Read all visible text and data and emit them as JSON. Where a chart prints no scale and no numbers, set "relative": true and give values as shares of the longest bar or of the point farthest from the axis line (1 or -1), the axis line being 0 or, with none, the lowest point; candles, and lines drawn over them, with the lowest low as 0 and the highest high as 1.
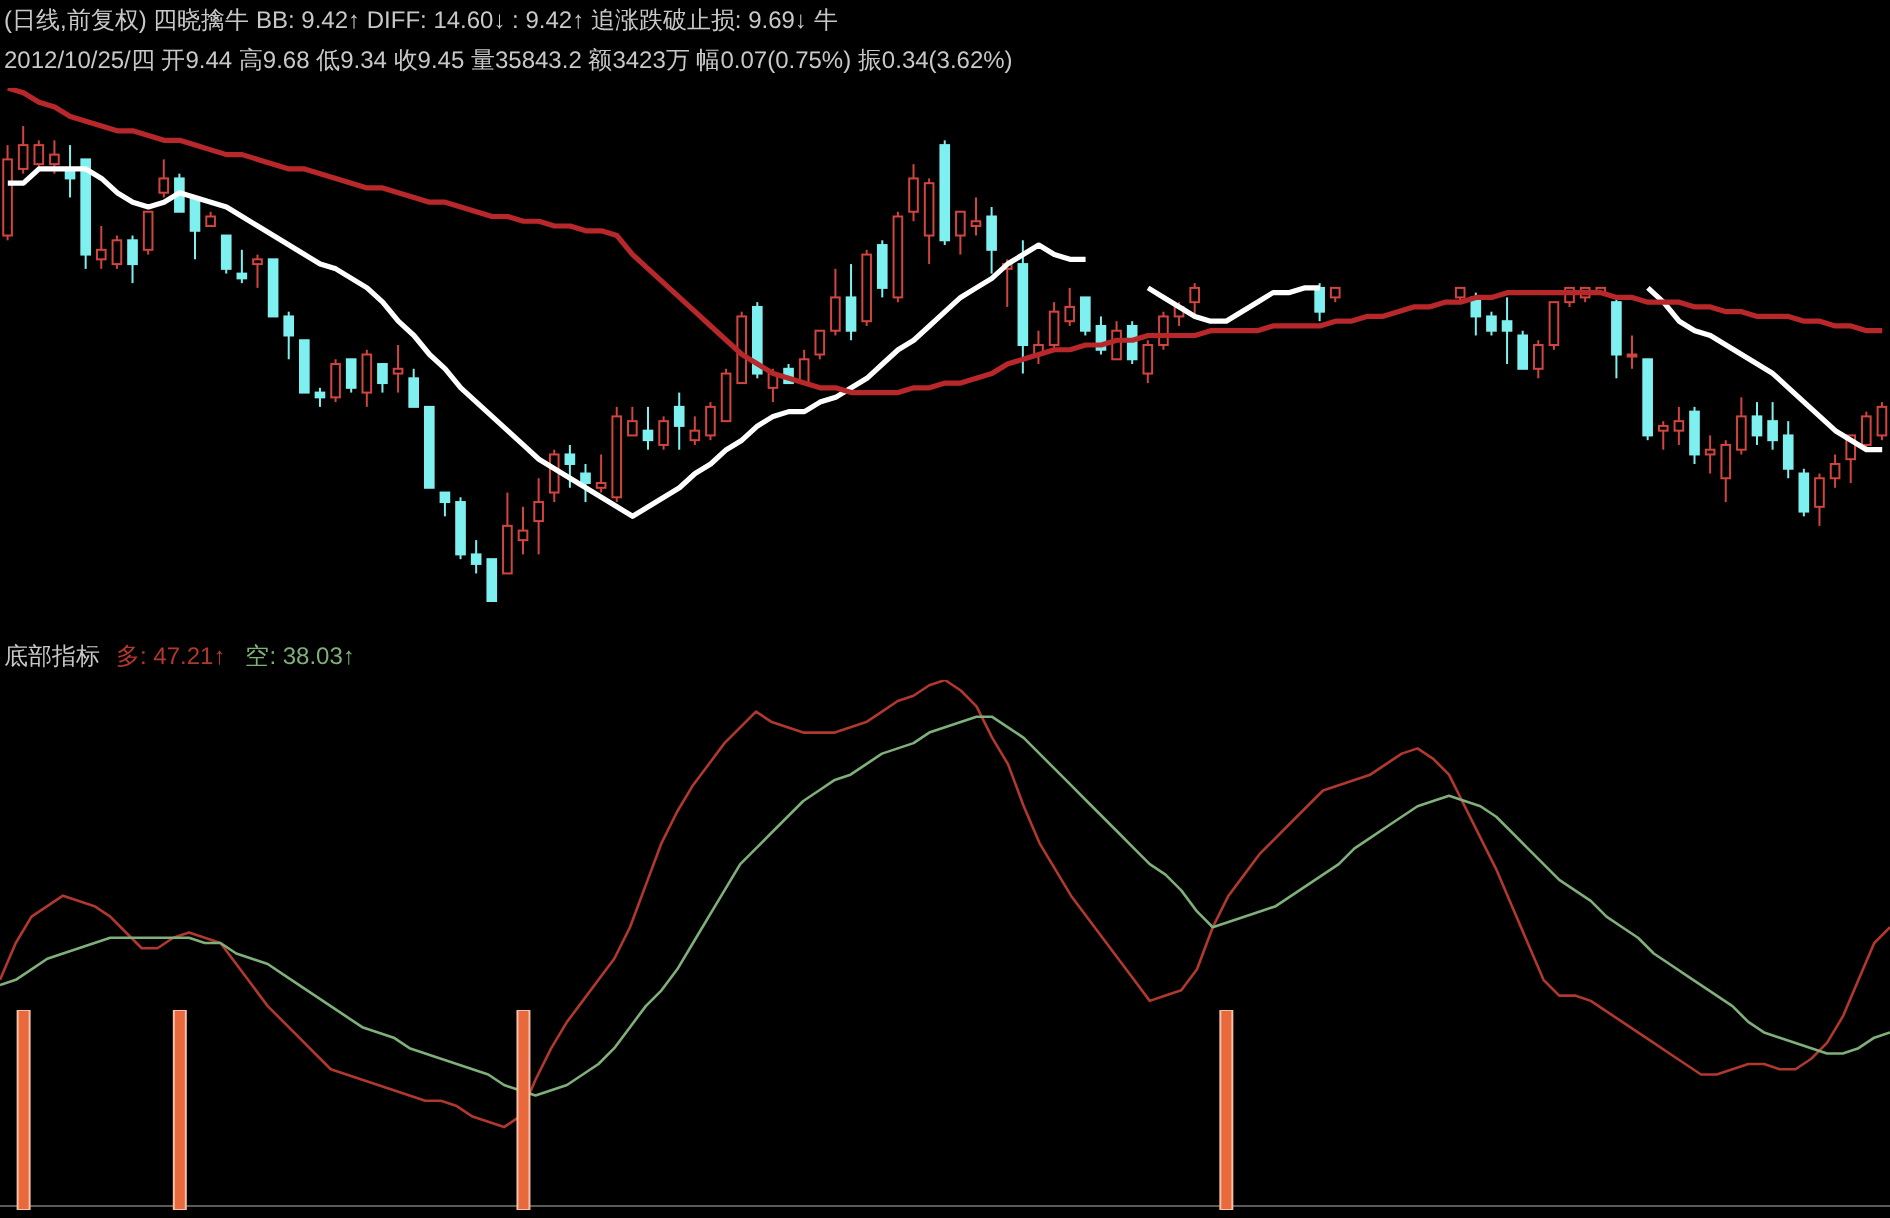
{
  "chart_data": [
    {
      "type": "candlestick",
      "title": "(日线,前复权) 四晓擒牛 BB: 9.42↑ DIFF: 14.60↓ : 9.42↑ 追涨跌破止损: 9.69↓ 牛",
      "subtitle": "2012/10/25/四 开9.44 高9.68 低9.34 收9.45 量35843.2 额3423万 幅0.07(0.75%) 振0.34(3.62%)",
      "relative": true,
      "categories": [
        null,
        null,
        null,
        null,
        null,
        null,
        null,
        null,
        null,
        null,
        null,
        null,
        null,
        null,
        null,
        null,
        null,
        null,
        null,
        null,
        null,
        null,
        null,
        null,
        null,
        null,
        null,
        null,
        null,
        null,
        null,
        null,
        null,
        null,
        null,
        null,
        null,
        null,
        null,
        null,
        null,
        null,
        null,
        null,
        null,
        null,
        null,
        null,
        null,
        null,
        null,
        null,
        null,
        null,
        null,
        null,
        null,
        null,
        null,
        null,
        null,
        null,
        null,
        null,
        null,
        null,
        null,
        null,
        null,
        null,
        null,
        null,
        null,
        null,
        null,
        null,
        null,
        null,
        null,
        null,
        null,
        null,
        null,
        null,
        null,
        null,
        null,
        null,
        null,
        null,
        null,
        null,
        null,
        null,
        null,
        null,
        null,
        null,
        null,
        null,
        null,
        null,
        null,
        null,
        null,
        null,
        null,
        null,
        null,
        null,
        null,
        null,
        null,
        null,
        null,
        null,
        null,
        null,
        null,
        null,
        null
      ],
      "ohlc": [
        [
          0.77,
          0.96,
          0.76,
          0.93
        ],
        [
          0.91,
          1.0,
          0.9,
          0.96
        ],
        [
          0.92,
          0.97,
          0.91,
          0.96
        ],
        [
          0.92,
          0.97,
          0.9,
          0.94
        ],
        [
          0.91,
          0.96,
          0.85,
          0.89
        ],
        [
          0.93,
          0.93,
          0.7,
          0.73
        ],
        [
          0.72,
          0.79,
          0.7,
          0.74
        ],
        [
          0.71,
          0.77,
          0.7,
          0.76
        ],
        [
          0.76,
          0.77,
          0.67,
          0.71
        ],
        [
          0.74,
          0.82,
          0.73,
          0.82
        ],
        [
          0.86,
          0.93,
          0.85,
          0.89
        ],
        [
          0.89,
          0.9,
          0.82,
          0.82
        ],
        [
          0.85,
          0.85,
          0.72,
          0.78
        ],
        [
          0.79,
          0.82,
          0.79,
          0.81
        ],
        [
          0.77,
          0.77,
          0.69,
          0.7
        ],
        [
          0.69,
          0.74,
          0.67,
          0.68
        ],
        [
          0.71,
          0.73,
          0.66,
          0.72
        ],
        [
          0.72,
          0.72,
          0.6,
          0.6
        ],
        [
          0.6,
          0.61,
          0.51,
          0.56
        ],
        [
          0.55,
          0.55,
          0.44,
          0.44
        ],
        [
          0.44,
          0.45,
          0.41,
          0.43
        ],
        [
          0.43,
          0.51,
          0.42,
          0.5
        ],
        [
          0.51,
          0.51,
          0.44,
          0.45
        ],
        [
          0.44,
          0.53,
          0.41,
          0.52
        ],
        [
          0.5,
          0.5,
          0.44,
          0.46
        ],
        [
          0.48,
          0.54,
          0.44,
          0.49
        ],
        [
          0.47,
          0.49,
          0.41,
          0.41
        ],
        [
          0.41,
          0.41,
          0.24,
          0.24
        ],
        [
          0.23,
          0.23,
          0.18,
          0.21
        ],
        [
          0.21,
          0.22,
          0.09,
          0.1
        ],
        [
          0.1,
          0.13,
          0.06,
          0.08
        ],
        [
          0.09,
          0.09,
          0,
          0
        ],
        [
          0.06,
          0.23,
          0.06,
          0.16
        ],
        [
          0.13,
          0.2,
          0.1,
          0.15
        ],
        [
          0.17,
          0.26,
          0.1,
          0.21
        ],
        [
          0.23,
          0.32,
          0.21,
          0.31
        ],
        [
          0.31,
          0.33,
          0.24,
          0.29
        ],
        [
          0.27,
          0.29,
          0.21,
          0.25
        ],
        [
          0.24,
          0.31,
          0.23,
          0.25
        ],
        [
          0.22,
          0.41,
          0.21,
          0.39
        ],
        [
          0.35,
          0.41,
          0.35,
          0.38
        ],
        [
          0.36,
          0.41,
          0.32,
          0.34
        ],
        [
          0.33,
          0.39,
          0.32,
          0.38
        ],
        [
          0.41,
          0.44,
          0.32,
          0.37
        ],
        [
          0.34,
          0.39,
          0.33,
          0.36
        ],
        [
          0.35,
          0.42,
          0.34,
          0.41
        ],
        [
          0.38,
          0.49,
          0.38,
          0.48
        ],
        [
          0.46,
          0.61,
          0.46,
          0.6
        ],
        [
          0.62,
          0.63,
          0.47,
          0.48
        ],
        [
          0.45,
          0.49,
          0.42,
          0.48
        ],
        [
          0.49,
          0.5,
          0.46,
          0.46
        ],
        [
          0.46,
          0.53,
          0.46,
          0.51
        ],
        [
          0.52,
          0.57,
          0.51,
          0.57
        ],
        [
          0.57,
          0.7,
          0.56,
          0.64
        ],
        [
          0.64,
          0.71,
          0.55,
          0.57
        ],
        [
          0.59,
          0.74,
          0.58,
          0.73
        ],
        [
          0.75,
          0.76,
          0.64,
          0.66
        ],
        [
          0.64,
          0.82,
          0.63,
          0.81
        ],
        [
          0.82,
          0.92,
          0.8,
          0.89
        ],
        [
          0.77,
          0.89,
          0.71,
          0.88
        ],
        [
          0.96,
          0.97,
          0.75,
          0.76
        ],
        [
          0.77,
          0.82,
          0.73,
          0.82
        ],
        [
          0.79,
          0.85,
          0.77,
          0.8
        ],
        [
          0.81,
          0.83,
          0.69,
          0.74
        ],
        [
          0.7,
          0.72,
          0.62,
          0.71
        ],
        [
          0.71,
          0.76,
          0.48,
          0.54
        ],
        [
          0.52,
          0.57,
          0.5,
          0.54
        ],
        [
          0.54,
          0.63,
          0.53,
          0.61
        ],
        [
          0.59,
          0.66,
          0.58,
          0.62
        ],
        [
          0.64,
          0.64,
          0.56,
          0.57
        ],
        [
          0.58,
          0.6,
          0.52,
          0.53
        ],
        [
          0.51,
          0.59,
          0.51,
          0.57
        ],
        [
          0.58,
          0.59,
          0.5,
          0.51
        ],
        [
          0.48,
          0.55,
          0.46,
          0.54
        ],
        [
          0.54,
          0.61,
          0.53,
          0.6
        ],
        [
          0.6,
          0.63,
          0.58,
          0.62
        ],
        [
          0.63,
          0.67,
          0.6,
          0.66
        ],
        null,
        null,
        null,
        null,
        null,
        null,
        null,
        [
          0.66,
          0.67,
          0.59,
          0.61
        ],
        [
          0.64,
          0.66,
          0.63,
          0.66
        ],
        null,
        null,
        null,
        null,
        null,
        null,
        null,
        [
          0.64,
          0.66,
          0.63,
          0.66
        ],
        [
          0.64,
          0.65,
          0.56,
          0.6
        ],
        [
          0.6,
          0.61,
          0.56,
          0.57
        ],
        [
          0.59,
          0.64,
          0.5,
          0.57
        ],
        [
          0.56,
          0.57,
          0.49,
          0.49
        ],
        [
          0.49,
          0.55,
          0.47,
          0.54
        ],
        [
          0.54,
          0.63,
          0.53,
          0.63
        ],
        [
          0.63,
          0.66,
          0.62,
          0.66
        ],
        [
          0.64,
          0.66,
          0.63,
          0.66
        ],
        [
          0.65,
          0.66,
          0.65,
          0.66
        ],
        [
          0.63,
          0.64,
          0.47,
          0.52
        ],
        [
          0.52,
          0.56,
          0.49,
          0.52
        ],
        [
          0.51,
          0.51,
          0.34,
          0.35
        ],
        [
          0.36,
          0.38,
          0.32,
          0.37
        ],
        [
          0.36,
          0.41,
          0.33,
          0.38
        ],
        [
          0.4,
          0.41,
          0.29,
          0.31
        ],
        [
          0.31,
          0.35,
          0.27,
          0.32
        ],
        [
          0.26,
          0.34,
          0.21,
          0.33
        ],
        [
          0.32,
          0.43,
          0.31,
          0.39
        ],
        [
          0.39,
          0.42,
          0.33,
          0.35
        ],
        [
          0.38,
          0.42,
          0.32,
          0.34
        ],
        [
          0.35,
          0.38,
          0.26,
          0.28
        ],
        [
          0.27,
          0.28,
          0.18,
          0.19
        ],
        [
          0.2,
          0.27,
          0.16,
          0.26
        ],
        [
          0.26,
          0.31,
          0.24,
          0.29
        ],
        [
          0.3,
          0.35,
          0.25,
          0.35
        ],
        [
          0.33,
          0.4,
          0.32,
          0.39
        ],
        [
          0.35,
          0.42,
          0.34,
          0.41
        ]
      ],
      "colors": [
        "#d0453e",
        "#d0453e",
        "#d0453e",
        "#d0453e",
        "#7ff0f0",
        "#7ff0f0",
        "#d0453e",
        "#d0453e",
        "#7ff0f0",
        "#d0453e",
        "#d0453e",
        "#7ff0f0",
        "#7ff0f0",
        "#d0453e",
        "#7ff0f0",
        "#7ff0f0",
        "#d0453e",
        "#7ff0f0",
        "#7ff0f0",
        "#7ff0f0",
        "#7ff0f0",
        "#d0453e",
        "#7ff0f0",
        "#d0453e",
        "#7ff0f0",
        "#d0453e",
        "#7ff0f0",
        "#7ff0f0",
        "#7ff0f0",
        "#7ff0f0",
        "#7ff0f0",
        "#7ff0f0",
        "#d0453e",
        "#d0453e",
        "#d0453e",
        "#d0453e",
        "#7ff0f0",
        "#7ff0f0",
        "#d0453e",
        "#d0453e",
        "#d0453e",
        "#7ff0f0",
        "#d0453e",
        "#7ff0f0",
        "#d0453e",
        "#d0453e",
        "#d0453e",
        "#d0453e",
        "#7ff0f0",
        "#d0453e",
        "#7ff0f0",
        "#d0453e",
        "#d0453e",
        "#d0453e",
        "#7ff0f0",
        "#d0453e",
        "#7ff0f0",
        "#d0453e",
        "#d0453e",
        "#d0453e",
        "#7ff0f0",
        "#d0453e",
        "#d0453e",
        "#7ff0f0",
        "#d0453e",
        "#7ff0f0",
        "#d0453e",
        "#d0453e",
        "#d0453e",
        "#7ff0f0",
        "#7ff0f0",
        "#d0453e",
        "#7ff0f0",
        "#d0453e",
        "#d0453e",
        "#d0453e",
        "#d0453e",
        null,
        null,
        null,
        null,
        null,
        null,
        null,
        "#7ff0f0",
        "#d0453e",
        null,
        null,
        null,
        null,
        null,
        null,
        null,
        "#d0453e",
        "#7ff0f0",
        "#7ff0f0",
        "#7ff0f0",
        "#7ff0f0",
        "#d0453e",
        "#d0453e",
        "#d0453e",
        "#d0453e",
        "#d0453e",
        "#7ff0f0",
        "#d0453e",
        "#7ff0f0",
        "#d0453e",
        "#d0453e",
        "#7ff0f0",
        "#d0453e",
        "#d0453e",
        "#d0453e",
        "#7ff0f0",
        "#7ff0f0",
        "#7ff0f0",
        "#7ff0f0",
        "#d0453e",
        "#d0453e",
        "#d0453e",
        "#d0453e",
        "#d0453e"
      ],
      "series": [
        {
          "type": "line",
          "color": "#ffffff",
          "values": [
            0.88,
            0.88,
            0.91,
            0.91,
            0.91,
            0.91,
            0.89,
            0.86,
            0.84,
            0.83,
            0.84,
            0.86,
            0.85,
            0.84,
            0.83,
            0.81,
            0.79,
            0.77,
            0.75,
            0.73,
            0.71,
            0.7,
            0.68,
            0.66,
            0.63,
            0.59,
            0.56,
            0.52,
            0.49,
            0.45,
            0.42,
            0.39,
            0.36,
            0.33,
            0.3,
            0.28,
            0.26,
            0.24,
            0.22,
            0.2,
            0.18,
            0.2,
            0.22,
            0.24,
            0.27,
            0.29,
            0.32,
            0.34,
            0.37,
            0.39,
            0.4,
            0.4,
            0.42,
            0.43,
            0.45,
            0.47,
            0.5,
            0.53,
            0.55,
            0.58,
            0.61,
            0.64,
            0.66,
            0.68,
            0.71,
            0.73,
            0.75,
            0.73,
            0.72,
            0.72,
            null,
            null,
            null,
            0.66,
            0.64,
            0.62,
            0.6,
            0.59,
            0.59,
            0.61,
            0.63,
            0.65,
            0.65,
            0.66,
            0.66,
            null,
            null,
            null,
            null,
            null,
            null,
            null,
            null,
            null,
            null,
            null,
            null,
            null,
            null,
            null,
            null,
            null,
            null,
            null,
            null,
            0.66,
            0.63,
            0.59,
            0.57,
            0.56,
            0.54,
            0.52,
            0.5,
            0.48,
            0.45,
            0.42,
            0.39,
            0.36,
            0.34,
            0.32,
            0.32
          ]
        },
        {
          "type": "line",
          "color": "#b8282a",
          "values": [
            1.08,
            1.07,
            1.05,
            1.04,
            1.02,
            1.01,
            1.0,
            0.99,
            0.99,
            0.98,
            0.97,
            0.97,
            0.96,
            0.95,
            0.94,
            0.94,
            0.93,
            0.92,
            0.91,
            0.91,
            0.9,
            0.89,
            0.88,
            0.87,
            0.87,
            0.86,
            0.85,
            0.84,
            0.84,
            0.83,
            0.82,
            0.81,
            0.81,
            0.8,
            0.8,
            0.79,
            0.79,
            0.78,
            0.78,
            0.77,
            0.73,
            0.7,
            0.67,
            0.64,
            0.61,
            0.58,
            0.55,
            0.52,
            0.5,
            0.48,
            0.47,
            0.46,
            0.45,
            0.45,
            0.44,
            0.44,
            0.44,
            0.44,
            0.45,
            0.45,
            0.46,
            0.46,
            0.47,
            0.48,
            0.5,
            0.51,
            0.52,
            0.53,
            0.53,
            0.54,
            0.54,
            0.55,
            0.55,
            0.56,
            0.56,
            0.56,
            0.56,
            0.57,
            0.57,
            0.57,
            0.57,
            0.58,
            0.58,
            0.58,
            0.58,
            0.59,
            0.59,
            0.6,
            0.6,
            0.61,
            0.62,
            0.62,
            0.63,
            0.63,
            0.64,
            0.64,
            0.65,
            0.65,
            0.65,
            0.65,
            0.65,
            0.65,
            0.65,
            0.64,
            0.64,
            0.63,
            0.63,
            0.63,
            0.62,
            0.62,
            0.61,
            0.61,
            0.6,
            0.6,
            0.6,
            0.59,
            0.59,
            0.58,
            0.58,
            0.57,
            0.57
          ]
        }
      ]
    },
    {
      "type": "line",
      "title": "底部指标",
      "relative": true,
      "categories": [
        null,
        null,
        null,
        null,
        null,
        null,
        null,
        null,
        null,
        null,
        null,
        null,
        null,
        null,
        null,
        null,
        null,
        null,
        null,
        null,
        null,
        null,
        null,
        null,
        null,
        null,
        null,
        null,
        null,
        null,
        null,
        null,
        null,
        null,
        null,
        null,
        null,
        null,
        null,
        null,
        null,
        null,
        null,
        null,
        null,
        null,
        null,
        null,
        null,
        null,
        null,
        null,
        null,
        null,
        null,
        null,
        null,
        null,
        null,
        null,
        null,
        null,
        null,
        null,
        null,
        null,
        null,
        null,
        null,
        null,
        null,
        null,
        null,
        null,
        null,
        null,
        null,
        null,
        null,
        null,
        null,
        null,
        null,
        null,
        null,
        null,
        null,
        null,
        null,
        null,
        null,
        null,
        null,
        null,
        null,
        null,
        null,
        null,
        null,
        null,
        null,
        null,
        null,
        null,
        null,
        null,
        null,
        null,
        null,
        null,
        null,
        null,
        null,
        null,
        null,
        null,
        null,
        null,
        null,
        null,
        null
      ],
      "series": [
        {
          "name": "多: 47.21↑",
          "color": "#b0382e",
          "values": [
            0.43,
            0.5,
            0.55,
            0.57,
            0.59,
            0.58,
            0.57,
            0.55,
            0.52,
            0.49,
            0.49,
            0.51,
            0.52,
            0.51,
            0.5,
            0.46,
            0.42,
            0.38,
            0.35,
            0.32,
            0.29,
            0.26,
            0.25,
            0.24,
            0.23,
            0.22,
            0.21,
            0.2,
            0.2,
            0.19,
            0.17,
            0.16,
            0.15,
            0.17,
            0.24,
            0.3,
            0.35,
            0.39,
            0.43,
            0.47,
            0.53,
            0.61,
            0.69,
            0.75,
            0.8,
            0.84,
            0.88,
            0.91,
            0.94,
            0.92,
            0.91,
            0.9,
            0.9,
            0.9,
            0.91,
            0.92,
            0.94,
            0.96,
            0.97,
            0.99,
            1.0,
            0.98,
            0.95,
            0.89,
            0.84,
            0.76,
            0.69,
            0.64,
            0.59,
            0.55,
            0.51,
            0.47,
            0.43,
            0.39,
            0.4,
            0.41,
            0.45,
            0.53,
            0.59,
            0.63,
            0.67,
            0.7,
            0.73,
            0.76,
            0.79,
            0.8,
            0.81,
            0.82,
            0.84,
            0.86,
            0.87,
            0.85,
            0.82,
            0.76,
            0.7,
            0.64,
            0.57,
            0.5,
            0.43,
            0.4,
            0.4,
            0.39,
            0.37,
            0.35,
            0.33,
            0.31,
            0.29,
            0.27,
            0.25,
            0.25,
            0.26,
            0.27,
            0.27,
            0.26,
            0.26,
            0.28,
            0.31,
            0.36,
            0.43,
            0.5,
            0.53
          ]
        },
        {
          "name": "空: 38.03↑",
          "color": "#7fb07a",
          "values": [
            0.42,
            0.43,
            0.45,
            0.47,
            0.48,
            0.49,
            0.5,
            0.51,
            0.51,
            0.51,
            0.51,
            0.51,
            0.51,
            0.5,
            0.5,
            0.48,
            0.47,
            0.46,
            0.44,
            0.42,
            0.4,
            0.38,
            0.36,
            0.34,
            0.33,
            0.32,
            0.3,
            0.29,
            0.28,
            0.27,
            0.26,
            0.25,
            0.23,
            0.22,
            0.21,
            0.22,
            0.23,
            0.25,
            0.27,
            0.3,
            0.34,
            0.38,
            0.41,
            0.45,
            0.5,
            0.55,
            0.6,
            0.65,
            0.68,
            0.71,
            0.74,
            0.77,
            0.79,
            0.81,
            0.82,
            0.84,
            0.86,
            0.87,
            0.88,
            0.9,
            0.91,
            0.92,
            0.93,
            0.93,
            0.91,
            0.89,
            0.86,
            0.83,
            0.8,
            0.77,
            0.74,
            0.71,
            0.68,
            0.65,
            0.63,
            0.6,
            0.56,
            0.53,
            0.54,
            0.55,
            0.56,
            0.57,
            0.59,
            0.61,
            0.63,
            0.65,
            0.68,
            0.7,
            0.72,
            0.74,
            0.76,
            0.77,
            0.78,
            0.77,
            0.76,
            0.74,
            0.71,
            0.68,
            0.65,
            0.62,
            0.6,
            0.58,
            0.55,
            0.53,
            0.51,
            0.48,
            0.46,
            0.44,
            0.42,
            0.4,
            0.38,
            0.35,
            0.33,
            0.32,
            0.31,
            0.3,
            0.29,
            0.29,
            0.3,
            0.32,
            0.33
          ]
        }
      ]
    },
    {
      "type": "bar",
      "relative": true,
      "color": "#e8693c",
      "categories": [
        null,
        null,
        null,
        null,
        null,
        null,
        null,
        null,
        null,
        null,
        null,
        null,
        null,
        null,
        null,
        null,
        null,
        null,
        null,
        null,
        null,
        null,
        null,
        null,
        null,
        null,
        null,
        null,
        null,
        null,
        null,
        null,
        null,
        null,
        null,
        null,
        null,
        null,
        null,
        null,
        null,
        null,
        null,
        null,
        null,
        null,
        null,
        null,
        null,
        null,
        null,
        null,
        null,
        null,
        null,
        null,
        null,
        null,
        null,
        null,
        null,
        null,
        null,
        null,
        null,
        null,
        null,
        null,
        null,
        null,
        null,
        null,
        null,
        null,
        null,
        null,
        null,
        null,
        null,
        null,
        null,
        null,
        null,
        null,
        null,
        null,
        null,
        null,
        null,
        null,
        null,
        null,
        null,
        null,
        null,
        null,
        null,
        null,
        null,
        null,
        null,
        null,
        null,
        null,
        null,
        null,
        null,
        null,
        null,
        null,
        null,
        null,
        null,
        null,
        null,
        null,
        null,
        null,
        null,
        null,
        null
      ],
      "values": [
        0,
        1,
        0,
        0,
        0,
        0,
        0,
        0,
        0,
        0,
        0,
        1,
        0,
        0,
        0,
        0,
        0,
        0,
        0,
        0,
        0,
        0,
        0,
        0,
        0,
        0,
        0,
        0,
        0,
        0,
        0,
        0,
        0,
        1,
        0,
        0,
        0,
        0,
        0,
        0,
        0,
        0,
        0,
        0,
        0,
        0,
        0,
        0,
        0,
        0,
        0,
        0,
        0,
        0,
        0,
        0,
        0,
        0,
        0,
        0,
        0,
        0,
        0,
        0,
        0,
        0,
        0,
        0,
        0,
        0,
        0,
        0,
        0,
        0,
        0,
        0,
        0,
        0,
        1,
        0,
        0,
        0,
        0,
        0,
        0,
        0,
        0,
        0,
        0,
        0,
        0,
        0,
        0,
        0,
        0,
        0,
        0,
        0,
        0,
        0,
        0,
        0,
        0,
        0,
        0,
        0,
        0,
        0,
        0,
        0,
        0,
        0,
        0,
        0,
        0,
        0,
        0,
        0,
        0,
        0,
        0
      ]
    }
  ]
}
